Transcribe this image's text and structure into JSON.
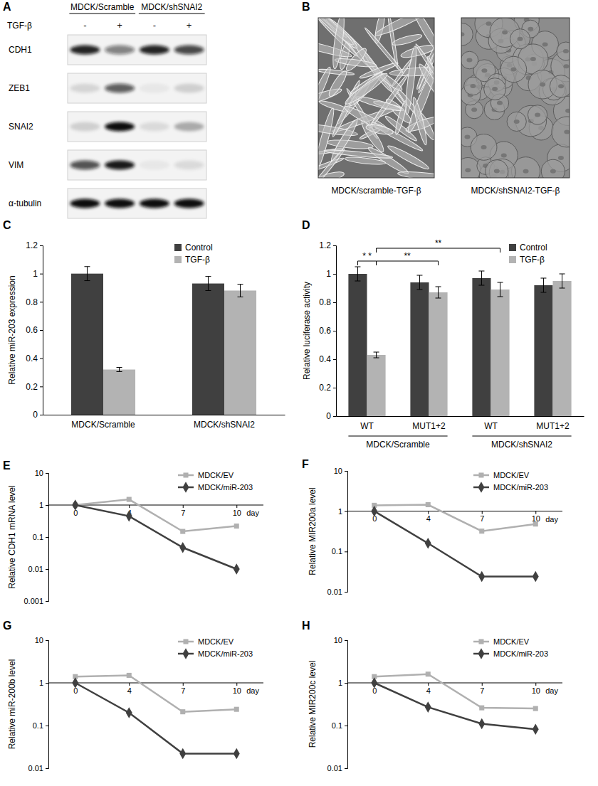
{
  "blot": {
    "panel": "A",
    "groups": [
      "MDCK/Scramble",
      "MDCK/shSNAI2"
    ],
    "treatment": "TGF-β",
    "lanes": [
      "-",
      "+",
      "-",
      "+"
    ],
    "rows": [
      {
        "name": "CDH1",
        "intensity": [
          0.9,
          0.5,
          0.9,
          0.75
        ]
      },
      {
        "name": "ZEB1",
        "intensity": [
          0.12,
          0.65,
          0.05,
          0.15
        ]
      },
      {
        "name": "SNAI2",
        "intensity": [
          0.15,
          1,
          0.1,
          0.3
        ]
      },
      {
        "name": "VIM",
        "intensity": [
          0.7,
          0.95,
          0.05,
          0.1
        ]
      },
      {
        "name": "α-tubulin",
        "intensity": [
          1,
          1,
          1,
          1
        ]
      }
    ]
  },
  "micrographs": {
    "panel": "B",
    "captions": [
      "MDCK/scramble-TGF-β",
      "MDCK/shSNAI2-TGF-β"
    ]
  },
  "chart_data": [
    {
      "panel": "C",
      "type": "bar",
      "y_label": "Relative miR-203 expression",
      "categories": [
        "MDCK/Scramble",
        "MDCK/shSNAI2"
      ],
      "series": [
        {
          "name": "Control",
          "color": "#404040",
          "values": [
            1,
            0.93
          ],
          "errors": [
            0.05,
            0.05
          ]
        },
        {
          "name": "TGF-β",
          "color": "#b3b3b3",
          "values": [
            0.32,
            0.88
          ],
          "errors": [
            0.015,
            0.045
          ]
        }
      ],
      "ylim": [
        0,
        1.2
      ],
      "yticks": [
        0,
        0.2,
        0.4,
        0.6,
        0.8,
        1,
        1.2
      ],
      "grid": false,
      "legend": "top-right"
    },
    {
      "panel": "D",
      "type": "bar",
      "y_label": "Relative luciferase activity",
      "categories": [
        "WT",
        "MUT1+2",
        "WT",
        "MUT1+2"
      ],
      "groups": [
        "MDCK/Scramble",
        "MDCK/shSNAI2"
      ],
      "series": [
        {
          "name": "Control",
          "color": "#404040",
          "values": [
            1,
            0.94,
            0.97,
            0.92
          ],
          "errors": [
            0.05,
            0.05,
            0.05,
            0.05
          ]
        },
        {
          "name": "TGF-β",
          "color": "#b3b3b3",
          "values": [
            0.43,
            0.87,
            0.89,
            0.95
          ],
          "errors": [
            0.02,
            0.04,
            0.05,
            0.05
          ]
        }
      ],
      "annotations": [
        "* *",
        "**",
        "**"
      ],
      "ylim": [
        0,
        1.2
      ],
      "yticks": [
        0,
        0.2,
        0.4,
        0.6,
        0.8,
        1,
        1.2
      ],
      "grid": false,
      "legend": "top-right"
    },
    {
      "panel": "E",
      "type": "line",
      "log": "y",
      "y_label": "Relative CDH1 mRNA level",
      "x_label": "day",
      "categories": [
        "0",
        "4",
        "7",
        "10"
      ],
      "series": [
        {
          "name": "MDCK/EV",
          "color": "#b0b0b0",
          "marker": "square",
          "values": [
            1,
            1.5,
            0.15,
            0.22
          ]
        },
        {
          "name": "MDCK/miR-203",
          "color": "#404040",
          "marker": "diamond",
          "values": [
            1,
            0.45,
            0.047,
            0.01
          ]
        }
      ],
      "ylim": [
        0.001,
        10
      ],
      "yticks": [
        0.001,
        0.01,
        0.1,
        1,
        10
      ],
      "legend": "top-right"
    },
    {
      "panel": "F",
      "type": "line",
      "log": "y",
      "y_label": "Relative MIR200a level",
      "x_label": "day",
      "categories": [
        "0",
        "4",
        "7",
        "10"
      ],
      "series": [
        {
          "name": "MDCK/EV",
          "color": "#b0b0b0",
          "marker": "square",
          "values": [
            1.4,
            1.45,
            0.32,
            0.48
          ]
        },
        {
          "name": "MDCK/miR-203",
          "color": "#404040",
          "marker": "diamond",
          "values": [
            1,
            0.16,
            0.024,
            0.024
          ]
        }
      ],
      "ylim": [
        0.01,
        10
      ],
      "yticks": [
        0.01,
        0.1,
        1,
        10
      ],
      "legend": "top-right"
    },
    {
      "panel": "G",
      "type": "line",
      "log": "y",
      "y_label": "Relative miR-200b level",
      "x_label": "day",
      "categories": [
        "0",
        "4",
        "7",
        "10"
      ],
      "series": [
        {
          "name": "MDCK/EV",
          "color": "#b0b0b0",
          "marker": "square",
          "values": [
            1.4,
            1.5,
            0.21,
            0.24
          ]
        },
        {
          "name": "MDCK/miR-203",
          "color": "#404040",
          "marker": "diamond",
          "values": [
            1,
            0.2,
            0.022,
            0.022
          ]
        }
      ],
      "ylim": [
        0.01,
        10
      ],
      "yticks": [
        0.01,
        0.1,
        1,
        10
      ],
      "legend": "top-right"
    },
    {
      "panel": "H",
      "type": "line",
      "log": "y",
      "y_label": "Relative MIR200c level",
      "x_label": "day",
      "categories": [
        "0",
        "4",
        "7",
        "10"
      ],
      "series": [
        {
          "name": "MDCK/EV",
          "color": "#b0b0b0",
          "marker": "square",
          "values": [
            1.4,
            1.6,
            0.26,
            0.25
          ]
        },
        {
          "name": "MDCK/miR-203",
          "color": "#404040",
          "marker": "diamond",
          "values": [
            1,
            0.27,
            0.11,
            0.082
          ]
        }
      ],
      "ylim": [
        0.01,
        10
      ],
      "yticks": [
        0.01,
        0.1,
        1,
        10
      ],
      "legend": "top-right"
    }
  ]
}
